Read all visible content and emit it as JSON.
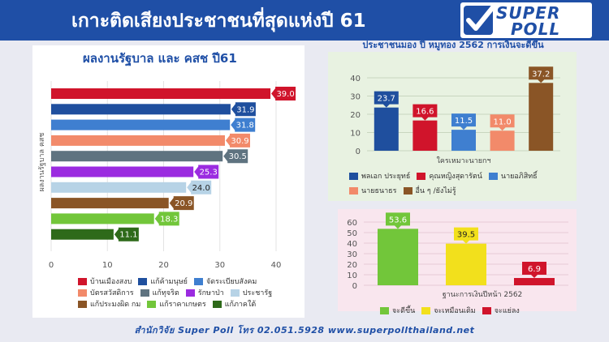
{
  "header": {
    "title": "เกาะติดเสียงประชาชนที่สุดแห่งปี 61",
    "logo_line1": "SUPER",
    "logo_line2": "POLL"
  },
  "footer": {
    "text": "สำนักวิจัย Super Poll โทร 02.051.5928   www.superpollthailand.net"
  },
  "colors": {
    "header_bg": "#1f4fa6",
    "accent": "#1f4fa6"
  },
  "chart_data": [
    {
      "type": "bar",
      "orientation": "horizontal",
      "title": "ผลงานรัฐบาล และ คสช ปี61",
      "ylabel": "ผลงานรัฐบาล คสช",
      "xlim": [
        0,
        40
      ],
      "xticks": [
        0,
        10,
        20,
        30,
        40
      ],
      "series": [
        {
          "name": "บ้านเมืองสงบ",
          "value": 39.0,
          "color": "#d0142b"
        },
        {
          "name": "แก้ค้ามนุษย์",
          "value": 31.9,
          "color": "#1f4f9e"
        },
        {
          "name": "จัดระเบียบสังคม",
          "value": 31.8,
          "color": "#3f7fd0"
        },
        {
          "name": "บัตรสวัสดิการ",
          "value": 30.9,
          "color": "#f28a6a"
        },
        {
          "name": "แก้ทุจริต",
          "value": 30.5,
          "color": "#5f7380"
        },
        {
          "name": "รักษาป่า",
          "value": 25.3,
          "color": "#9b2be0"
        },
        {
          "name": "ประชารัฐ",
          "value": 24.0,
          "color": "#b7d3e6"
        },
        {
          "name": "แก้ประมงผิด กม",
          "value": 20.9,
          "color": "#8a5526"
        },
        {
          "name": "แก้ราคาเกษตร",
          "value": 18.3,
          "color": "#72c63a"
        },
        {
          "name": "แก้ภาคใต้",
          "value": 11.1,
          "color": "#2e6a1a"
        }
      ]
    },
    {
      "type": "bar",
      "title": "ประชาชนมอง ปี หมูทอง 2562 การเงินจะดีขึ้น",
      "xlabel": "ใครเหมาะนายกฯ",
      "ylim": [
        0,
        40
      ],
      "yticks": [
        0,
        10,
        20,
        30,
        40
      ],
      "series": [
        {
          "name": "พลเอก ประยุทธ์",
          "value": 23.7,
          "color": "#1f4f9e"
        },
        {
          "name": "คุณหญิงสุดารัตน์",
          "value": 16.6,
          "color": "#d0142b"
        },
        {
          "name": "นายอภิสิทธิ์",
          "value": 11.5,
          "color": "#3f7fd0"
        },
        {
          "name": "นายธนาธร",
          "value": 11.0,
          "color": "#f28a6a"
        },
        {
          "name": "อื่น ๆ /ยังไม่รู้",
          "value": 37.2,
          "color": "#8a5526"
        }
      ]
    },
    {
      "type": "bar",
      "xlabel": "ฐานะการเงินปีหน้า 2562",
      "ylim": [
        0,
        60
      ],
      "yticks": [
        0,
        10,
        20,
        30,
        40,
        50,
        60
      ],
      "series": [
        {
          "name": "จะดีขึ้น",
          "value": 53.6,
          "color": "#72c63a"
        },
        {
          "name": "จะเหมือนเดิม",
          "value": 39.5,
          "color": "#f2e01c"
        },
        {
          "name": "จะแย่ลง",
          "value": 6.9,
          "color": "#d0142b"
        }
      ]
    }
  ]
}
